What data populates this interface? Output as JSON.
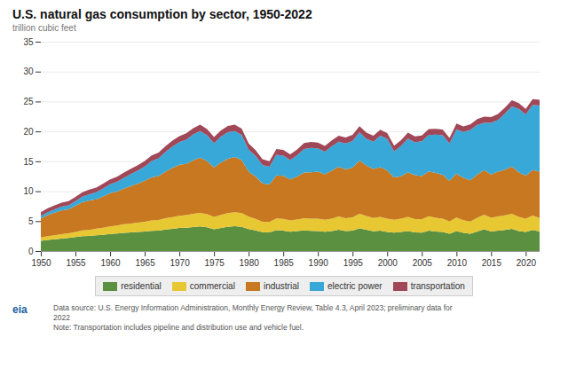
{
  "chart_data": {
    "type": "area",
    "stacked": true,
    "title": "U.S. natural gas consumption by sector, 1950-2022",
    "ylabel": "trillion cubic feet",
    "annotations": [
      "eia",
      "Data source: U.S. Energy Information Administration, Monthly Energy Review, Table 4.3, April 2023; preliminary data for\n2022\nNote: Transportation includes pipeline and distribution use and vehicle fuel."
    ],
    "xlim": [
      1950,
      2022
    ],
    "xticks": [
      1950,
      1955,
      1960,
      1965,
      1970,
      1975,
      1980,
      1985,
      1990,
      1995,
      2000,
      2005,
      2010,
      2015,
      2020
    ],
    "ylim": [
      0,
      35
    ],
    "yticks": [
      0,
      5,
      10,
      15,
      20,
      25,
      30,
      35
    ],
    "grid": true,
    "legend": "bottom",
    "x": [
      1950,
      1951,
      1952,
      1953,
      1954,
      1955,
      1956,
      1957,
      1958,
      1959,
      1960,
      1961,
      1962,
      1963,
      1964,
      1965,
      1966,
      1967,
      1968,
      1969,
      1970,
      1971,
      1972,
      1973,
      1974,
      1975,
      1976,
      1977,
      1978,
      1979,
      1980,
      1981,
      1982,
      1983,
      1984,
      1985,
      1986,
      1987,
      1988,
      1989,
      1990,
      1991,
      1992,
      1993,
      1994,
      1995,
      1996,
      1997,
      1998,
      1999,
      2000,
      2001,
      2002,
      2003,
      2004,
      2005,
      2006,
      2007,
      2008,
      2009,
      2010,
      2011,
      2012,
      2013,
      2014,
      2015,
      2016,
      2017,
      2018,
      2019,
      2020,
      2021,
      2022
    ],
    "series": [
      {
        "name": "residential",
        "color": "#5a9040",
        "values": [
          1.7,
          1.85,
          1.97,
          2.08,
          2.18,
          2.32,
          2.47,
          2.52,
          2.63,
          2.72,
          2.85,
          2.92,
          3.05,
          3.12,
          3.18,
          3.28,
          3.38,
          3.42,
          3.6,
          3.7,
          3.84,
          3.9,
          4.0,
          4.1,
          3.95,
          3.65,
          3.85,
          4.05,
          4.15,
          4.05,
          3.68,
          3.45,
          3.15,
          3.1,
          3.48,
          3.4,
          3.22,
          3.32,
          3.45,
          3.38,
          3.35,
          3.22,
          3.32,
          3.55,
          3.32,
          3.4,
          3.78,
          3.55,
          3.3,
          3.42,
          3.18,
          3.08,
          3.18,
          3.35,
          3.12,
          3.08,
          3.42,
          3.28,
          3.18,
          2.9,
          3.32,
          3.05,
          2.88,
          3.28,
          3.62,
          3.28,
          3.4,
          3.52,
          3.72,
          3.35,
          3.18,
          3.52,
          3.28
        ]
      },
      {
        "name": "commercial",
        "color": "#e8c832",
        "values": [
          0.55,
          0.62,
          0.68,
          0.74,
          0.8,
          0.88,
          0.97,
          1.02,
          1.1,
          1.18,
          1.28,
          1.35,
          1.42,
          1.48,
          1.55,
          1.62,
          1.72,
          1.78,
          1.9,
          1.98,
          2.05,
          2.1,
          2.22,
          2.28,
          2.2,
          2.05,
          2.18,
          2.28,
          2.35,
          2.28,
          2.05,
          1.92,
          1.75,
          1.75,
          1.98,
          1.98,
          1.88,
          1.95,
          2.05,
          2.05,
          2.05,
          2.02,
          2.08,
          2.22,
          2.15,
          2.22,
          2.45,
          2.32,
          2.22,
          2.28,
          2.25,
          2.15,
          2.22,
          2.35,
          2.22,
          2.22,
          2.4,
          2.28,
          2.22,
          2.05,
          2.28,
          2.1,
          2.05,
          2.28,
          2.45,
          2.28,
          2.4,
          2.45,
          2.52,
          2.35,
          2.25,
          2.4,
          2.25
        ]
      },
      {
        "name": "industrial",
        "color": "#c87820",
        "values": [
          3.2,
          3.55,
          3.78,
          3.98,
          3.98,
          4.35,
          4.72,
          4.92,
          4.92,
          5.22,
          5.55,
          5.68,
          5.98,
          6.28,
          6.55,
          6.85,
          7.22,
          7.35,
          7.78,
          8.22,
          8.52,
          8.58,
          8.95,
          9.22,
          8.88,
          8.28,
          8.78,
          9.08,
          9.22,
          8.88,
          7.55,
          7.08,
          6.42,
          6.28,
          7.18,
          7.18,
          6.88,
          7.18,
          7.62,
          7.75,
          7.88,
          7.58,
          8.05,
          8.32,
          8.18,
          8.32,
          8.88,
          8.45,
          8.18,
          8.32,
          8.05,
          7.08,
          7.08,
          7.48,
          7.35,
          7.22,
          7.48,
          7.48,
          7.35,
          6.78,
          7.35,
          7.08,
          6.88,
          7.22,
          7.48,
          7.22,
          7.48,
          7.62,
          7.88,
          7.48,
          7.18,
          7.62,
          7.75
        ]
      },
      {
        "name": "electric power",
        "color": "#38a8d8",
        "values": [
          0.4,
          0.48,
          0.55,
          0.62,
          0.68,
          0.78,
          0.92,
          1.05,
          1.18,
          1.35,
          1.48,
          1.62,
          1.8,
          2.0,
          2.18,
          2.38,
          2.72,
          2.95,
          3.28,
          3.58,
          3.78,
          4.05,
          4.32,
          4.45,
          4.32,
          4.05,
          4.32,
          4.45,
          4.32,
          4.18,
          3.68,
          3.45,
          3.08,
          2.95,
          3.45,
          3.38,
          3.22,
          3.55,
          3.95,
          4.05,
          3.88,
          3.78,
          4.05,
          4.18,
          4.32,
          4.45,
          4.72,
          4.45,
          4.58,
          5.25,
          5.28,
          4.35,
          5.08,
          5.62,
          5.48,
          5.85,
          6.1,
          6.42,
          6.62,
          6.25,
          7.38,
          7.68,
          8.45,
          8.32,
          7.88,
          8.65,
          8.65,
          9.38,
          10.05,
          10.58,
          10.22,
          10.88,
          11.05
        ]
      },
      {
        "name": "transportation",
        "color": "#a04858",
        "values": [
          0.62,
          0.64,
          0.66,
          0.68,
          0.7,
          0.72,
          0.74,
          0.76,
          0.78,
          0.8,
          0.82,
          0.84,
          0.86,
          0.88,
          0.9,
          0.92,
          0.94,
          0.96,
          0.98,
          1.0,
          1.02,
          1.04,
          1.06,
          1.08,
          1.06,
          1.02,
          1.04,
          1.06,
          1.08,
          1.06,
          1.02,
          0.98,
          0.94,
          0.94,
          0.98,
          0.98,
          0.96,
          0.98,
          1.0,
          1.0,
          0.98,
          0.98,
          1.0,
          1.02,
          1.0,
          1.02,
          1.05,
          1.02,
          1.0,
          1.02,
          0.98,
          0.94,
          0.98,
          1.0,
          0.98,
          0.96,
          1.0,
          0.98,
          0.96,
          0.92,
          0.98,
          0.94,
          0.9,
          0.96,
          1.02,
          0.96,
          0.98,
          1.0,
          1.05,
          0.96,
          0.92,
          0.98,
          0.96
        ]
      }
    ]
  }
}
